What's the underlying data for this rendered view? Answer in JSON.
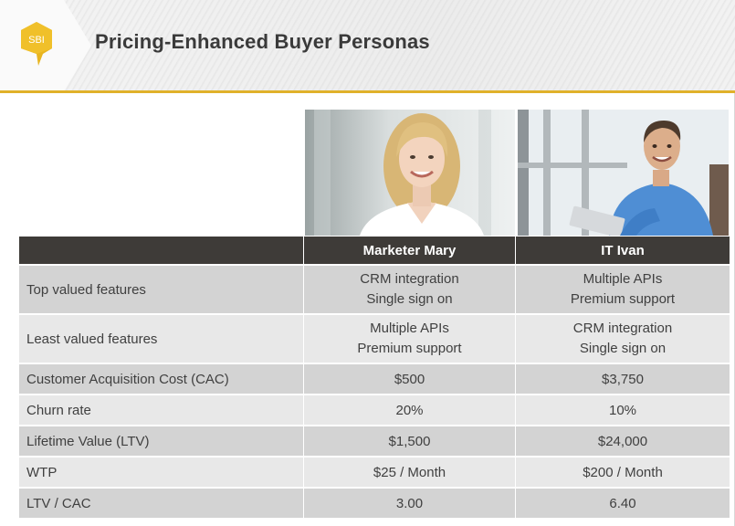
{
  "slide": {
    "logo_text": "SBI",
    "title": "Pricing-Enhanced Buyer Personas"
  },
  "colors": {
    "accent_gold": "#e0b12a",
    "header_row": "#3e3b38",
    "row_dark": "#d3d3d3",
    "row_light": "#e8e8e8"
  },
  "personas": [
    {
      "name": "Marketer Mary",
      "photo": "woman-portrait-photo"
    },
    {
      "name": "IT Ivan",
      "photo": "man-with-tablet-photo"
    }
  ],
  "table": {
    "header": [
      "",
      "Marketer Mary",
      "IT Ivan"
    ],
    "rows": [
      {
        "label": "Top valued features",
        "mary": [
          "CRM integration",
          "Single sign on"
        ],
        "ivan": [
          "Multiple APIs",
          "Premium support"
        ]
      },
      {
        "label": "Least valued features",
        "mary": [
          "Multiple APIs",
          "Premium support"
        ],
        "ivan": [
          "CRM integration",
          "Single sign on"
        ]
      },
      {
        "label": "Customer Acquisition Cost (CAC)",
        "mary": [
          "$500"
        ],
        "ivan": [
          "$3,750"
        ]
      },
      {
        "label": "Churn rate",
        "mary": [
          "20%"
        ],
        "ivan": [
          "10%"
        ]
      },
      {
        "label": "Lifetime Value (LTV)",
        "mary": [
          "$1,500"
        ],
        "ivan": [
          "$24,000"
        ]
      },
      {
        "label": "WTP",
        "mary": [
          "$25 / Month"
        ],
        "ivan": [
          "$200 / Month"
        ]
      },
      {
        "label": "LTV / CAC",
        "mary": [
          "3.00"
        ],
        "ivan": [
          "6.40"
        ]
      }
    ]
  }
}
